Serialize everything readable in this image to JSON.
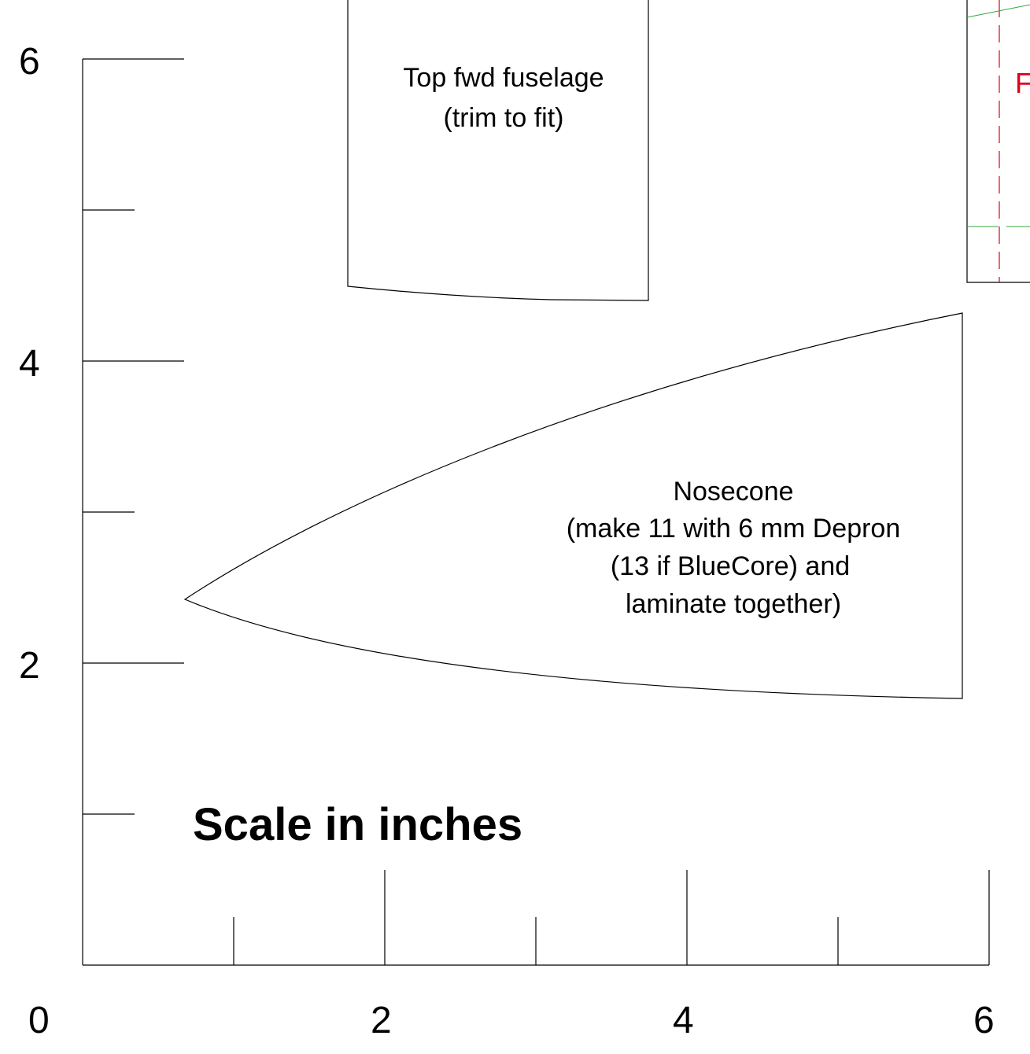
{
  "colors": {
    "line": "#000000",
    "cut_line": "#e0001b",
    "guide_line": "#2fa83a",
    "background": "#ffffff"
  },
  "scale": {
    "title": "Scale in inches",
    "y_tick_labels": [
      "6",
      "4",
      "2"
    ],
    "x_tick_labels": [
      "0",
      "2",
      "4",
      "6"
    ]
  },
  "parts": {
    "top_fwd_fuselage": {
      "label_line1": "Top fwd fuselage",
      "label_line2": "(trim to fit)"
    },
    "nosecone": {
      "label_line1": "Nosecone",
      "label_line2": "(make 11 with 6 mm Depron",
      "label_line3": "(13 if BlueCore) and",
      "label_line4": "laminate together)"
    },
    "partial_part": {
      "visible_label": "F"
    }
  }
}
